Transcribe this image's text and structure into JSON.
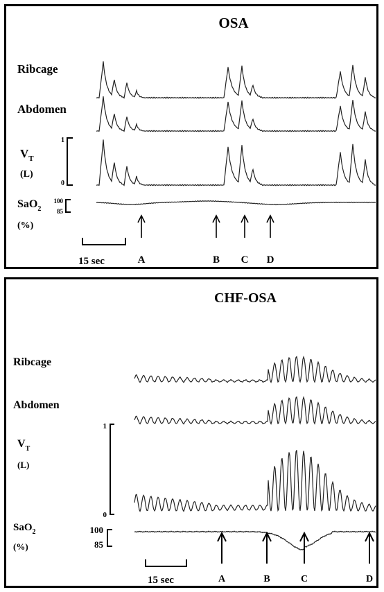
{
  "panels": [
    {
      "title": "OSA",
      "channels": {
        "ribcage": "Ribcage",
        "abdomen": "Abdomen",
        "vt": "V",
        "vt_sub": "T",
        "vt_unit": "(L)",
        "vt_scale": [
          "1",
          "0"
        ],
        "sao2": "SaO",
        "sao2_sub": "2",
        "sao2_unit": "(%)",
        "sao2_scale": [
          "100",
          "85"
        ]
      },
      "time_scale": "15 sec",
      "markers": [
        "A",
        "B",
        "C",
        "D"
      ]
    },
    {
      "title": "CHF-OSA",
      "channels": {
        "ribcage": "Ribcage",
        "abdomen": "Abdomen",
        "vt": "V",
        "vt_sub": "T",
        "vt_unit": "(L)",
        "vt_scale": [
          "1",
          "0"
        ],
        "sao2": "SaO",
        "sao2_sub": "2",
        "sao2_unit": "(%)",
        "sao2_scale": [
          "100",
          "85"
        ]
      },
      "time_scale": "15 sec",
      "markers": [
        "A",
        "B",
        "C",
        "D"
      ]
    }
  ],
  "chart_data": [
    {
      "type": "line",
      "title": "OSA",
      "series": [
        {
          "name": "Ribcage"
        },
        {
          "name": "Abdomen"
        },
        {
          "name": "VT (L)"
        },
        {
          "name": "SaO2 (%)"
        }
      ],
      "markers": [
        "A",
        "B",
        "C",
        "D"
      ],
      "scale_bar": "15 sec"
    },
    {
      "type": "line",
      "title": "CHF-OSA",
      "series": [
        {
          "name": "Ribcage"
        },
        {
          "name": "Abdomen"
        },
        {
          "name": "VT (L)"
        },
        {
          "name": "SaO2 (%)"
        }
      ],
      "markers": [
        "A",
        "B",
        "C",
        "D"
      ],
      "scale_bar": "15 sec"
    }
  ]
}
